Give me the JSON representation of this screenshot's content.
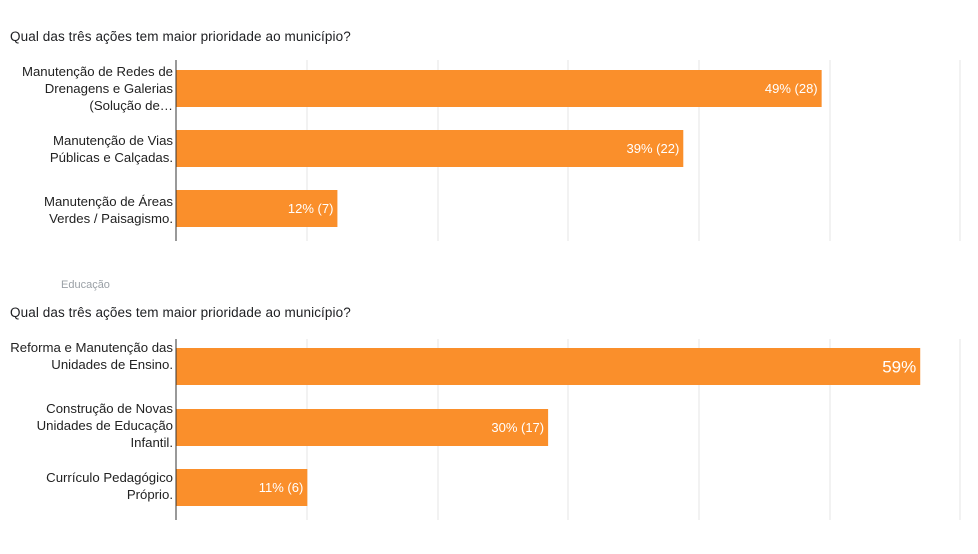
{
  "chart_data": [
    {
      "type": "bar",
      "orientation": "horizontal",
      "title": "Qual das três ações tem maior prioridade ao município?",
      "section": "",
      "categories": [
        "Manutenção de Redes de Drenagens e Galerias (Solução de…",
        "Manutenção de Vias Públicas e Calçadas.",
        "Manutenção de Áreas Verdes / Paisagismo."
      ],
      "values": [
        28,
        22,
        7
      ],
      "percent": [
        49,
        39,
        12
      ],
      "data_labels": [
        "49% (28)",
        "39% (22)",
        "12% (7)"
      ],
      "xlim": [
        0,
        34
      ],
      "grid": true,
      "bar_color": "#fa8f2b"
    },
    {
      "type": "bar",
      "orientation": "horizontal",
      "title": "Qual das três ações tem maior prioridade ao município?",
      "section": "Educação",
      "categories": [
        "Reforma e Manutenção das Unidades de Ensino.",
        "Construção de Novas Unidades de Educação Infantil.",
        "Currículo Pedagógico Próprio."
      ],
      "values": [
        34,
        17,
        6
      ],
      "percent": [
        59,
        30,
        11
      ],
      "data_labels": [
        "59%",
        "30% (17)",
        "11% (6)"
      ],
      "xlim": [
        0,
        36
      ],
      "grid": true,
      "bar_color": "#fa8f2b"
    }
  ]
}
